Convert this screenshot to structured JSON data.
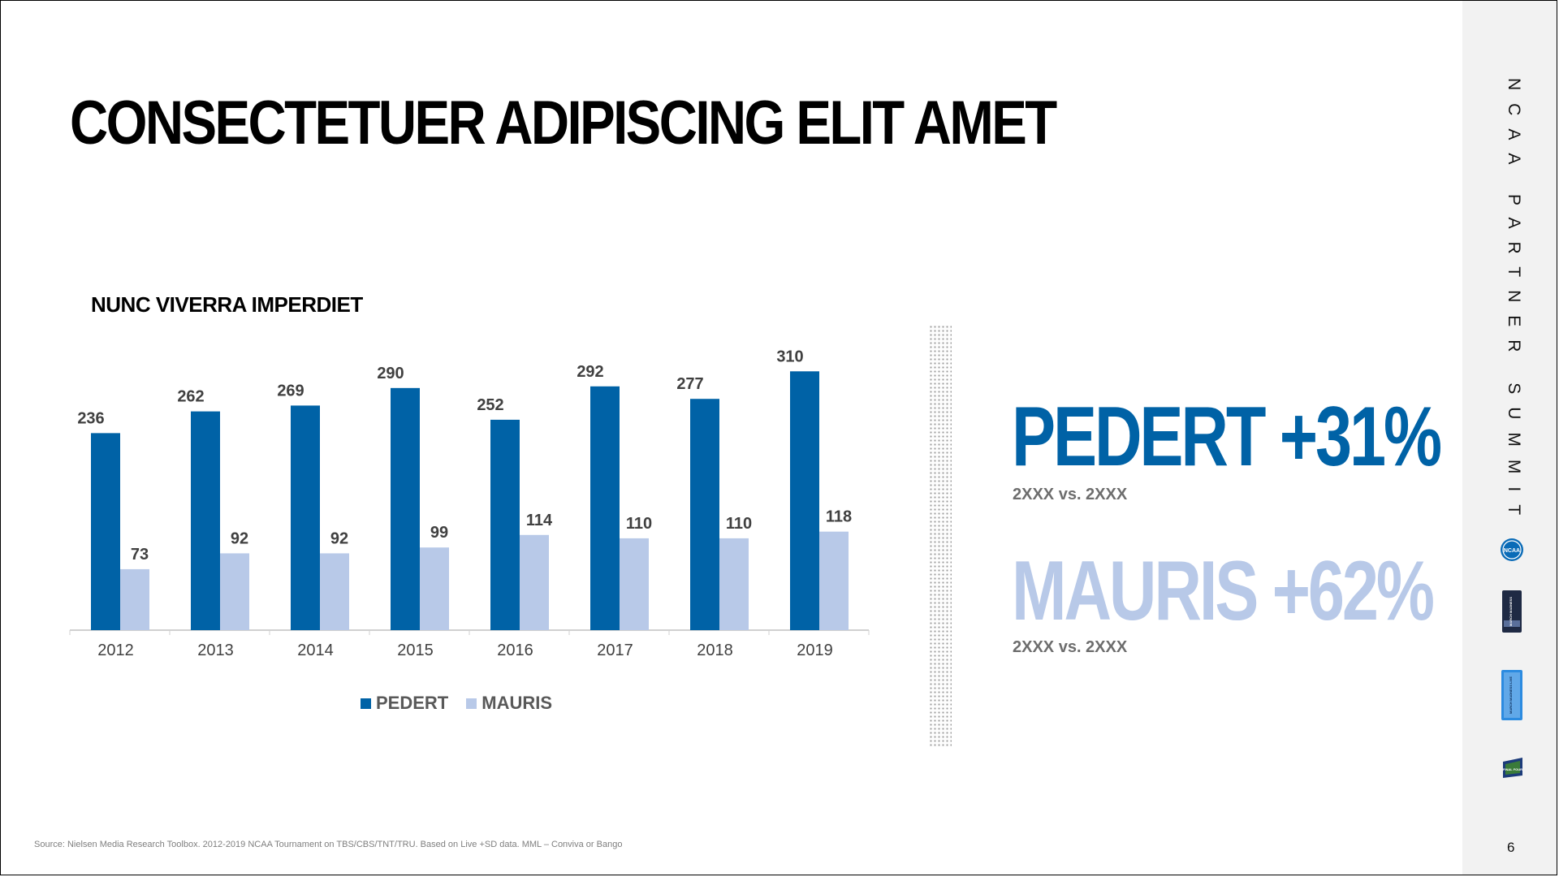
{
  "title": "CONSECTETUER ADIPISCING ELIT AMET",
  "chart_data": {
    "type": "bar",
    "title": "NUNC VIVERRA IMPERDIET",
    "categories": [
      "2012",
      "2013",
      "2014",
      "2015",
      "2016",
      "2017",
      "2018",
      "2019"
    ],
    "series": [
      {
        "name": "PEDERT",
        "color": "#0062a6",
        "values": [
          236,
          262,
          269,
          290,
          252,
          292,
          277,
          310
        ]
      },
      {
        "name": "MAURIS",
        "color": "#b8c9e8",
        "values": [
          73,
          92,
          92,
          99,
          114,
          110,
          110,
          118
        ]
      }
    ],
    "ylim": [
      0,
      320
    ],
    "grid": false,
    "legend": "bottom-center",
    "data_labels": true
  },
  "stats": [
    {
      "label": "PEDERT +31%",
      "sub": "2XXX vs. 2XXX",
      "color": "#0062a6"
    },
    {
      "label": "MAURIS +62%",
      "sub": "2XXX vs. 2XXX",
      "color": "#b8c9e8"
    }
  ],
  "source": "Source: Nielsen Media Research Toolbox. 2012-2019 NCAA Tournament on TBS/CBS/TNT/TRU. Based on Live +SD data. MML – Conviva or Bango",
  "sidebar": {
    "vertical_text": "NCAA PARTNER SUMMIT",
    "logos": [
      "ncaa-logo",
      "march-madness-logo",
      "march-madness-live-logo",
      "final-four-logo"
    ],
    "logo_text": {
      "ncaa": "NCAA",
      "mm": "MARCH MADNESS",
      "mml": "MARCH MADNESS LIVE",
      "ff": "FINAL FOUR"
    },
    "page_number": "6"
  },
  "colors": {
    "primary": "#0062a6",
    "secondary": "#b8c9e8",
    "sidebar_bg": "#f2f2f2"
  }
}
